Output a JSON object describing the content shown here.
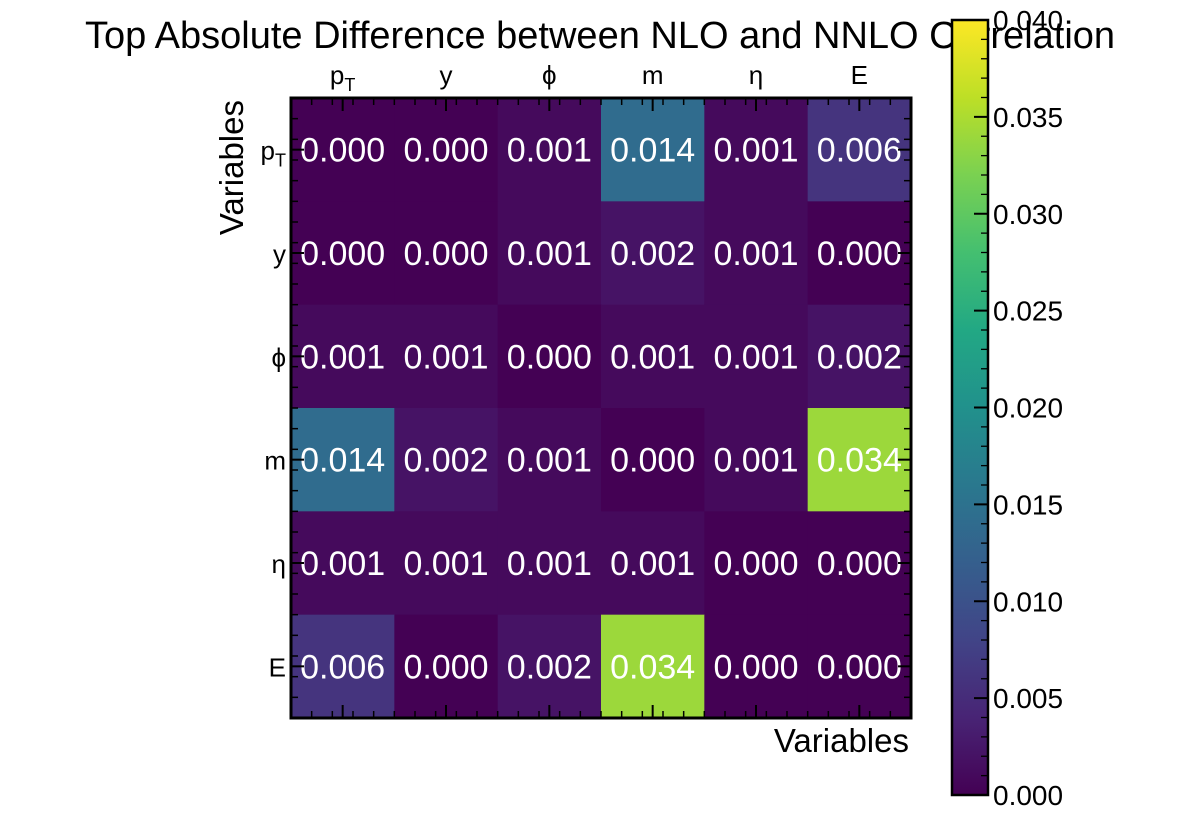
{
  "chart_data": {
    "type": "heatmap",
    "title": "Top Absolute Difference between NLO and NNLO Correlation",
    "xlabel": "Variables",
    "ylabel": "Variables",
    "x_categories": [
      "pT",
      "y",
      "ϕ",
      "m",
      "η",
      "E"
    ],
    "y_categories": [
      "pT",
      "y",
      "ϕ",
      "m",
      "η",
      "E"
    ],
    "values": [
      [
        0.0,
        0.0,
        0.001,
        0.014,
        0.001,
        0.006
      ],
      [
        0.0,
        0.0,
        0.001,
        0.002,
        0.001,
        0.0
      ],
      [
        0.001,
        0.001,
        0.0,
        0.001,
        0.001,
        0.002
      ],
      [
        0.014,
        0.002,
        0.001,
        0.0,
        0.001,
        0.034
      ],
      [
        0.001,
        0.001,
        0.001,
        0.001,
        0.0,
        0.0
      ],
      [
        0.006,
        0.0,
        0.002,
        0.034,
        0.0,
        0.0
      ]
    ],
    "value_format_decimals": 3,
    "colormap": "viridis",
    "colorbar": {
      "range": [
        0.0,
        0.04
      ],
      "ticks": [
        0.0,
        0.005,
        0.01,
        0.015,
        0.02,
        0.025,
        0.03,
        0.035,
        0.04
      ],
      "tick_labels": [
        "0.000",
        "0.005",
        "0.010",
        "0.015",
        "0.020",
        "0.025",
        "0.030",
        "0.035",
        "0.040"
      ]
    },
    "x_tick_position": "top",
    "annotation_color": "#ffffff"
  }
}
